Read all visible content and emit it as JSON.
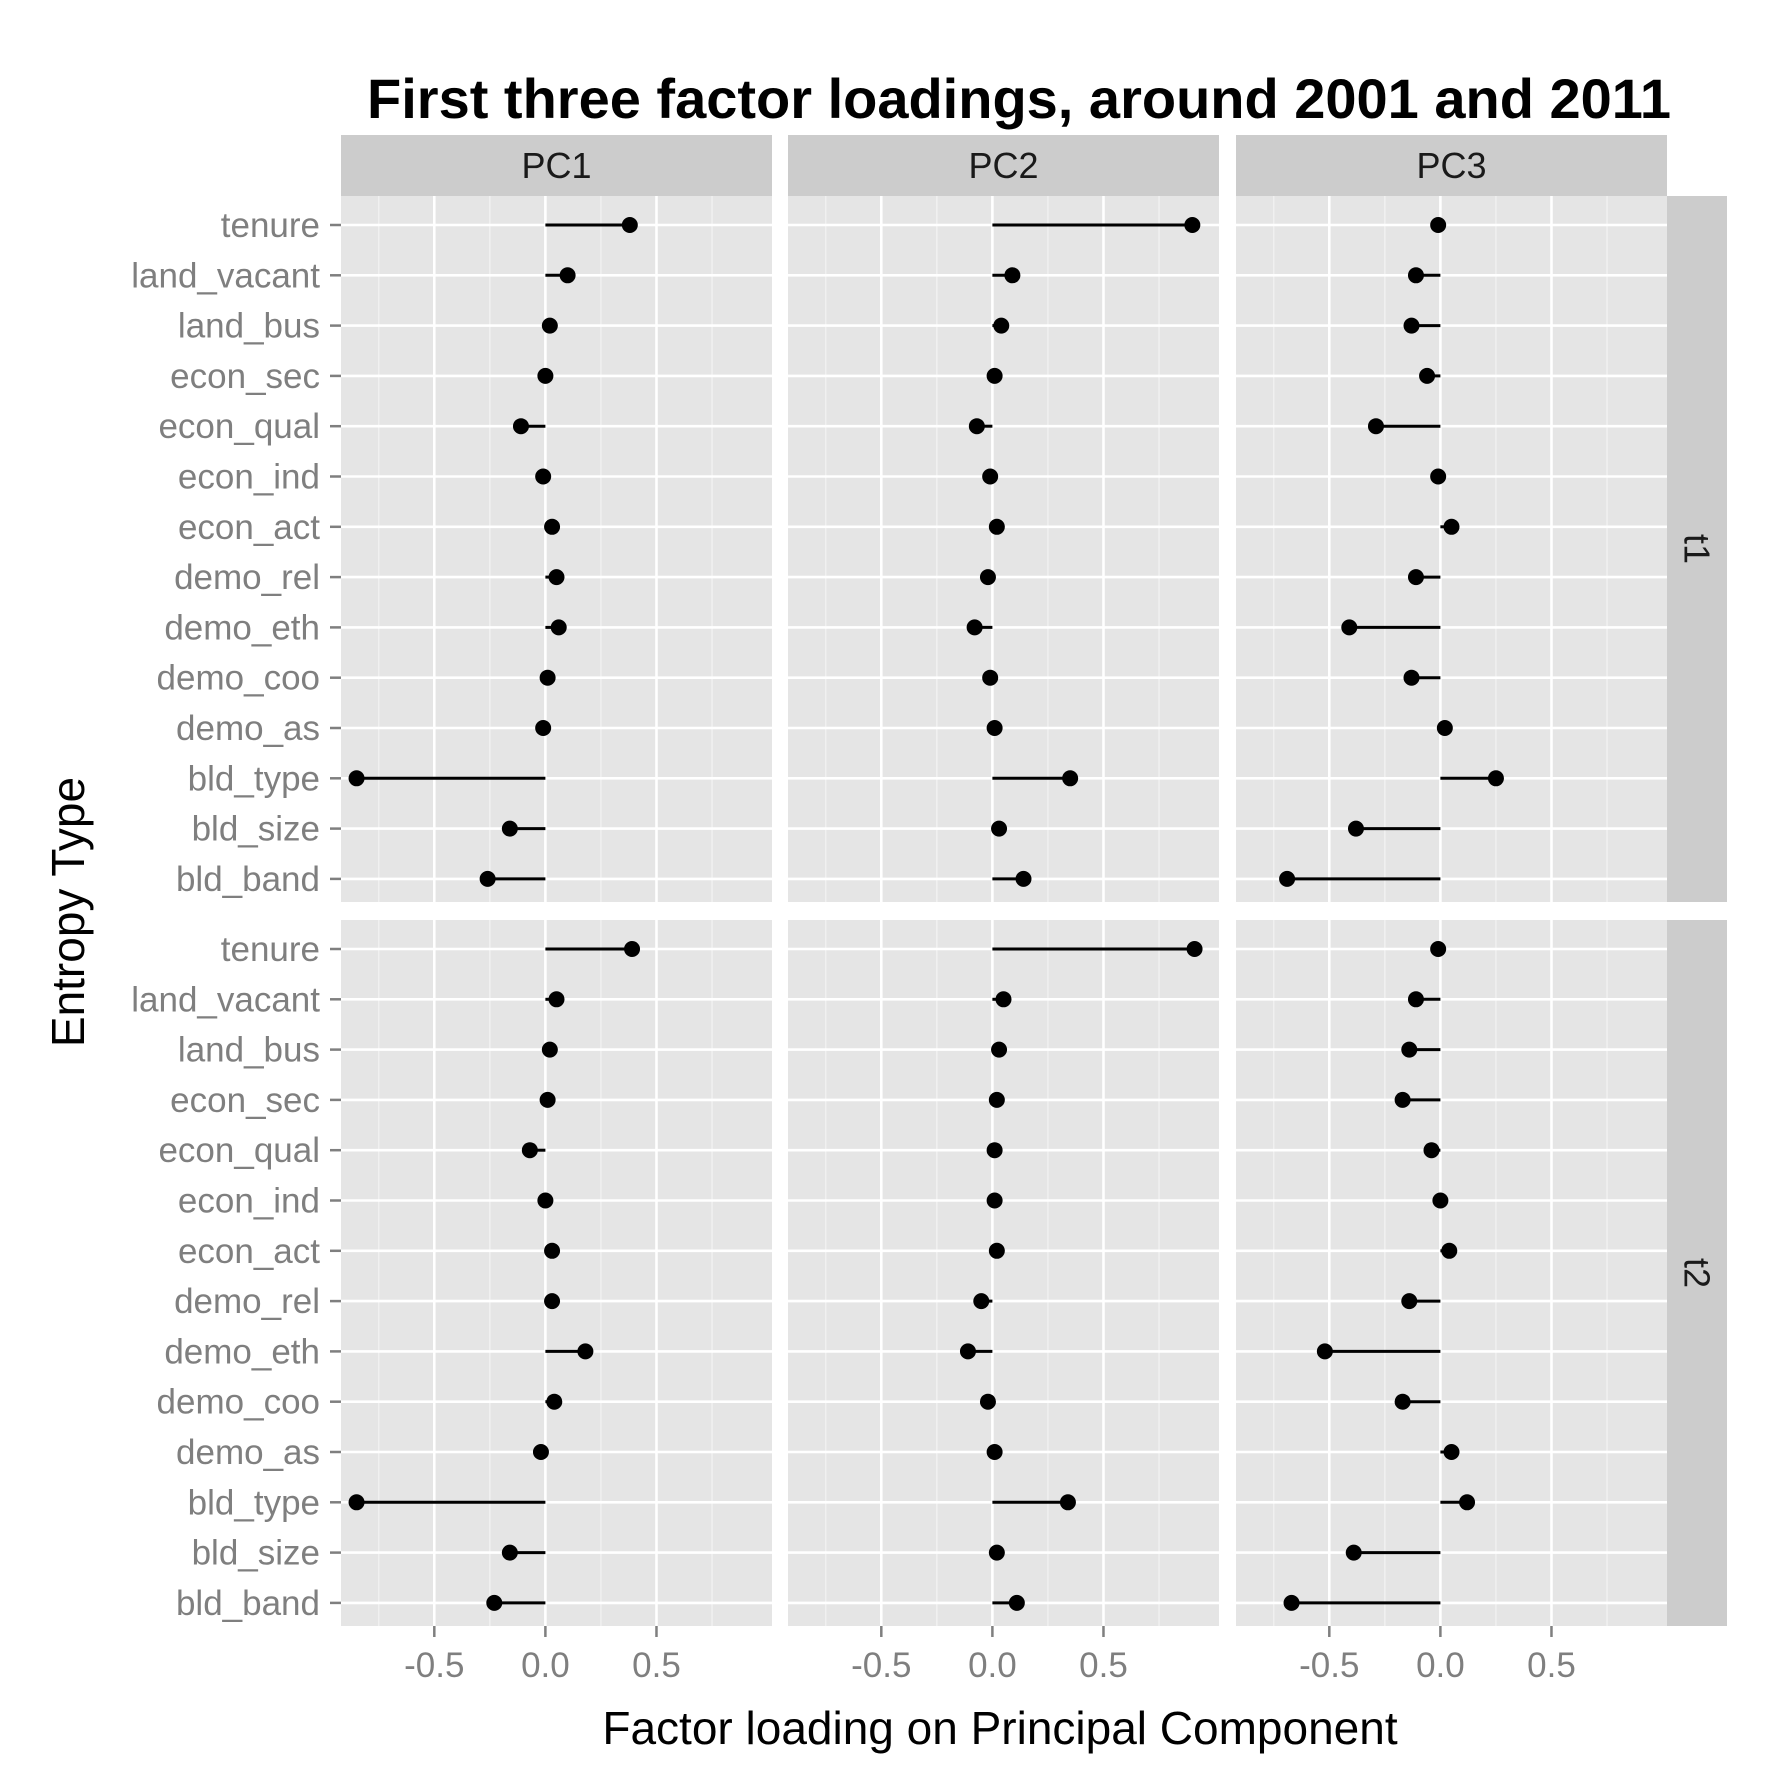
{
  "chart_data": {
    "type": "scatter",
    "title": "First three factor loadings, around 2001 and 2011",
    "xlabel": "Factor loading on Principal Component",
    "ylabel": "Entropy Type",
    "xlim": [
      -0.92,
      1.02
    ],
    "x_ticks": [
      -0.5,
      0.0,
      0.5
    ],
    "x_tick_labels": [
      "-0.5",
      "0.0",
      "0.5"
    ],
    "grid": true,
    "columns": [
      "PC1",
      "PC2",
      "PC3"
    ],
    "rows": [
      "t1",
      "t2"
    ],
    "categories": [
      "tenure",
      "land_vacant",
      "land_bus",
      "econ_sec",
      "econ_qual",
      "econ_ind",
      "econ_act",
      "demo_rel",
      "demo_eth",
      "demo_coo",
      "demo_as",
      "bld_type",
      "bld_size",
      "bld_band"
    ],
    "panels": [
      {
        "row": "t1",
        "column": "PC1",
        "values": [
          0.38,
          0.1,
          0.02,
          0.0,
          -0.11,
          -0.01,
          0.03,
          0.05,
          0.06,
          0.01,
          -0.01,
          -0.85,
          -0.16,
          -0.26
        ]
      },
      {
        "row": "t1",
        "column": "PC2",
        "values": [
          0.9,
          0.09,
          0.04,
          0.01,
          -0.07,
          -0.01,
          0.02,
          -0.02,
          -0.08,
          -0.01,
          0.01,
          0.35,
          0.03,
          0.14
        ]
      },
      {
        "row": "t1",
        "column": "PC3",
        "values": [
          -0.01,
          -0.11,
          -0.13,
          -0.06,
          -0.29,
          -0.01,
          0.05,
          -0.11,
          -0.41,
          -0.13,
          0.02,
          0.25,
          -0.38,
          -0.69
        ]
      },
      {
        "row": "t2",
        "column": "PC1",
        "values": [
          0.39,
          0.05,
          0.02,
          0.01,
          -0.07,
          0.0,
          0.03,
          0.03,
          0.18,
          0.04,
          -0.02,
          -0.85,
          -0.16,
          -0.23
        ]
      },
      {
        "row": "t2",
        "column": "PC2",
        "values": [
          0.91,
          0.05,
          0.03,
          0.02,
          0.01,
          0.01,
          0.02,
          -0.05,
          -0.11,
          -0.02,
          0.01,
          0.34,
          0.02,
          0.11
        ]
      },
      {
        "row": "t2",
        "column": "PC3",
        "values": [
          -0.01,
          -0.11,
          -0.14,
          -0.17,
          -0.04,
          0.0,
          0.04,
          -0.14,
          -0.52,
          -0.17,
          0.05,
          0.12,
          -0.39,
          -0.67
        ]
      }
    ]
  },
  "style": {
    "panel_bg": "#e5e5e5",
    "grid_color": "#ffffff",
    "strip_bg": "#cccccc",
    "mark_color": "#000000",
    "tick_color": "#7f7f7f"
  }
}
